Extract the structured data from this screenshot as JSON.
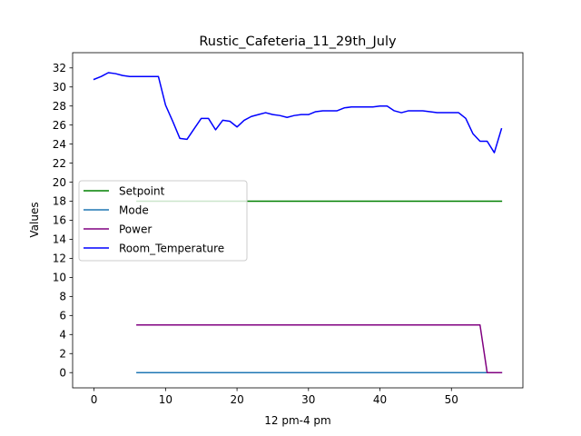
{
  "chart_data": {
    "type": "line",
    "title": "Rustic_Cafeteria_11_29th_July",
    "xlabel": "12 pm-4 pm",
    "ylabel": "Values",
    "xlim": [
      -3,
      60
    ],
    "ylim": [
      -1.6,
      33.6
    ],
    "xticks": [
      0,
      10,
      20,
      30,
      40,
      50
    ],
    "yticks": [
      0,
      2,
      4,
      6,
      8,
      10,
      12,
      14,
      16,
      18,
      20,
      22,
      24,
      26,
      28,
      30,
      32
    ],
    "grid": false,
    "legend_position": "center-left",
    "series": [
      {
        "name": "Setpoint",
        "color": "#008000",
        "x": [
          6,
          57
        ],
        "y": [
          18,
          18
        ]
      },
      {
        "name": "Mode",
        "color": "#1f77b4",
        "x": [
          6,
          57
        ],
        "y": [
          0,
          0
        ]
      },
      {
        "name": "Power",
        "color": "#800080",
        "x": [
          6,
          54,
          55,
          57
        ],
        "y": [
          5,
          5,
          0,
          0
        ]
      },
      {
        "name": "Room_Temperature",
        "color": "#0000ff",
        "x": [
          0,
          1,
          2,
          3,
          4,
          5,
          6,
          7,
          8,
          9,
          10,
          11,
          12,
          13,
          14,
          15,
          16,
          17,
          18,
          19,
          20,
          21,
          22,
          23,
          24,
          25,
          26,
          27,
          28,
          29,
          30,
          31,
          32,
          33,
          34,
          35,
          36,
          37,
          38,
          39,
          40,
          41,
          42,
          43,
          44,
          45,
          46,
          47,
          48,
          49,
          50,
          51,
          52,
          53,
          54,
          55,
          56,
          57
        ],
        "y": [
          30.8,
          31.1,
          31.5,
          31.4,
          31.2,
          31.1,
          31.1,
          31.1,
          31.1,
          31.1,
          28.1,
          26.4,
          24.6,
          24.5,
          25.6,
          26.7,
          26.7,
          25.5,
          26.5,
          26.4,
          25.8,
          26.5,
          26.9,
          27.1,
          27.3,
          27.1,
          27.0,
          26.8,
          27.0,
          27.1,
          27.1,
          27.4,
          27.5,
          27.5,
          27.5,
          27.8,
          27.9,
          27.9,
          27.9,
          27.9,
          28.0,
          28.0,
          27.5,
          27.3,
          27.5,
          27.5,
          27.5,
          27.4,
          27.3,
          27.3,
          27.3,
          27.3,
          26.7,
          25.1,
          24.3,
          24.3,
          23.1,
          25.6
        ]
      }
    ]
  }
}
